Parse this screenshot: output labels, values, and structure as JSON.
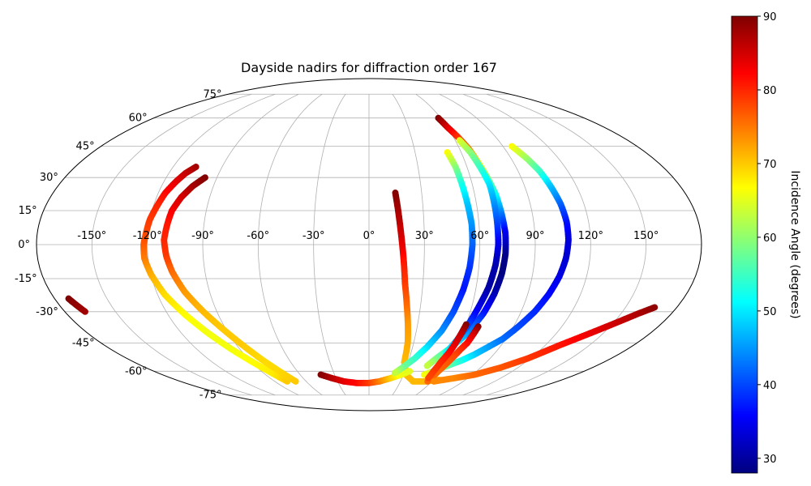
{
  "chart_data": {
    "type": "scatter",
    "projection": "mollweide",
    "title": "Dayside nadirs for diffraction order 167",
    "colorbar": {
      "label": "Incidence Angle (degrees)",
      "min": 28,
      "max": 90,
      "ticks": [
        "30",
        "40",
        "50",
        "60",
        "70",
        "80",
        "90"
      ],
      "tick_values": [
        30,
        40,
        50,
        60,
        70,
        80,
        90
      ],
      "colormap": "jet"
    },
    "lon_ticks": [
      "-150°",
      "-120°",
      "-90°",
      "-60°",
      "-30°",
      "0°",
      "30°",
      "60°",
      "90°",
      "120°",
      "150°"
    ],
    "lon_values": [
      -150,
      -120,
      -90,
      -60,
      -30,
      0,
      30,
      60,
      90,
      120,
      150
    ],
    "lat_ticks": [
      "75°",
      "60°",
      "45°",
      "30°",
      "15°",
      "0°",
      "-15°",
      "-30°",
      "-45°",
      "-60°",
      "-75°"
    ],
    "lat_values": [
      75,
      60,
      45,
      30,
      15,
      0,
      -15,
      -30,
      -45,
      -60,
      -75
    ],
    "grid": true,
    "tracks": [
      {
        "points": [
          [
            -106,
            35,
            88
          ],
          [
            -110,
            32,
            86
          ],
          [
            -113,
            28,
            84
          ],
          [
            -116,
            23,
            82
          ],
          [
            -118,
            17,
            80
          ],
          [
            -120,
            11,
            79
          ],
          [
            -121,
            5,
            78
          ],
          [
            -122,
            0,
            77
          ],
          [
            -122,
            -6,
            75
          ],
          [
            -120,
            -13,
            72
          ],
          [
            -116,
            -22,
            69
          ],
          [
            -110,
            -31,
            67
          ],
          [
            -103,
            -40,
            66
          ],
          [
            -96,
            -48,
            66
          ],
          [
            -88,
            -56,
            67
          ],
          [
            -82,
            -62,
            68
          ],
          [
            -78,
            -66,
            70
          ]
        ]
      },
      {
        "points": [
          [
            -97,
            30,
            90
          ],
          [
            -102,
            26,
            88
          ],
          [
            -106,
            21,
            85
          ],
          [
            -109,
            15,
            83
          ],
          [
            -110,
            9,
            81
          ],
          [
            -111,
            2,
            80
          ],
          [
            -110,
            -5,
            79
          ],
          [
            -108,
            -12,
            76
          ],
          [
            -104,
            -21,
            73
          ],
          [
            -98,
            -30,
            71
          ],
          [
            -92,
            -38,
            70
          ],
          [
            -86,
            -46,
            70
          ],
          [
            -80,
            -54,
            69
          ],
          [
            -75,
            -60,
            69
          ],
          [
            -70,
            -66,
            70
          ]
        ]
      },
      {
        "points": [
          [
            -172,
            -24,
            90
          ],
          [
            -170,
            -27,
            89
          ],
          [
            -168,
            -30,
            88
          ]
        ]
      },
      {
        "points": [
          [
            15,
            23,
            90
          ],
          [
            16,
            16,
            88
          ],
          [
            17,
            8,
            86
          ],
          [
            18,
            0,
            84
          ],
          [
            19,
            -8,
            81
          ],
          [
            20,
            -17,
            79
          ],
          [
            22,
            -27,
            76
          ],
          [
            24,
            -36,
            73
          ],
          [
            26,
            -45,
            72
          ],
          [
            27,
            -55,
            71
          ],
          [
            32,
            -62,
            71
          ],
          [
            42,
            -66,
            71
          ],
          [
            55,
            -66,
            71
          ],
          [
            65,
            -65,
            71
          ]
        ]
      },
      {
        "points": [
          [
            -42,
            -62,
            90
          ],
          [
            -34,
            -64,
            87
          ],
          [
            -24,
            -66,
            84
          ],
          [
            -12,
            -67,
            82
          ],
          [
            0,
            -67,
            79
          ],
          [
            10,
            -66,
            75
          ],
          [
            20,
            -64,
            70
          ],
          [
            28,
            -62,
            66
          ],
          [
            34,
            -60,
            65
          ]
        ]
      },
      {
        "points": [
          [
            51,
            42,
            67
          ],
          [
            53,
            35,
            60
          ],
          [
            54,
            27,
            53
          ],
          [
            55,
            18,
            48
          ],
          [
            56,
            9,
            45
          ],
          [
            56,
            0,
            42
          ],
          [
            55,
            -10,
            39
          ],
          [
            53,
            -20,
            37
          ],
          [
            50,
            -30,
            40
          ],
          [
            46,
            -39,
            44
          ],
          [
            40,
            -47,
            49
          ],
          [
            34,
            -53,
            54
          ],
          [
            27,
            -58,
            58
          ],
          [
            22,
            -61,
            63
          ]
        ]
      },
      {
        "points": [
          [
            58,
            60,
            90
          ],
          [
            60,
            55,
            85
          ],
          [
            63,
            50,
            80
          ],
          [
            66,
            44,
            75
          ],
          [
            68,
            37,
            68
          ],
          [
            70,
            30,
            60
          ],
          [
            72,
            22,
            52
          ],
          [
            73,
            14,
            44
          ],
          [
            74,
            5,
            35
          ],
          [
            74,
            -4,
            29
          ],
          [
            73,
            -13,
            28
          ],
          [
            71,
            -22,
            31
          ],
          [
            68,
            -31,
            37
          ],
          [
            63,
            -40,
            44
          ],
          [
            57,
            -47,
            52
          ],
          [
            50,
            -53,
            58
          ],
          [
            46,
            -57,
            63
          ]
        ]
      },
      {
        "points": [
          [
            63,
            48,
            65
          ],
          [
            66,
            42,
            60
          ],
          [
            68,
            35,
            55
          ],
          [
            70,
            27,
            50
          ],
          [
            70,
            18,
            45
          ],
          [
            70,
            9,
            40
          ],
          [
            70,
            0,
            35
          ],
          [
            69,
            -9,
            31
          ],
          [
            67,
            -19,
            30
          ],
          [
            64,
            -28,
            34
          ],
          [
            61,
            -37,
            40
          ],
          [
            58,
            -44,
            46
          ],
          [
            55,
            -50,
            51
          ]
        ]
      },
      {
        "points": [
          [
            96,
            45,
            67
          ],
          [
            100,
            39,
            61
          ],
          [
            103,
            33,
            55
          ],
          [
            105,
            26,
            48
          ],
          [
            107,
            18,
            42
          ],
          [
            108,
            10,
            37
          ],
          [
            108,
            2,
            34
          ],
          [
            107,
            -6,
            33
          ],
          [
            105,
            -14,
            34
          ],
          [
            102,
            -22,
            36
          ],
          [
            98,
            -30,
            38
          ],
          [
            93,
            -37,
            40
          ],
          [
            88,
            -43,
            42
          ],
          [
            82,
            -47,
            45
          ],
          [
            76,
            -51,
            48
          ],
          [
            70,
            -54,
            52
          ],
          [
            62,
            -57,
            57
          ],
          [
            54,
            -60,
            62
          ],
          [
            48,
            -62,
            66
          ]
        ]
      },
      {
        "points": [
          [
            68,
            -37,
            90
          ],
          [
            67,
            -41,
            85
          ],
          [
            66,
            -45,
            82
          ],
          [
            64,
            -48,
            80
          ],
          [
            62,
            -52,
            78
          ],
          [
            60,
            -56,
            77
          ],
          [
            58,
            -60,
            76
          ],
          [
            57,
            -63,
            76
          ],
          [
            56,
            -66,
            76
          ]
        ]
      },
      {
        "points": [
          [
            60,
            -36,
            90
          ],
          [
            59,
            -41,
            86
          ],
          [
            58,
            -46,
            84
          ],
          [
            57,
            -50,
            82
          ],
          [
            55,
            -55,
            80
          ],
          [
            54,
            -60,
            79
          ],
          [
            54,
            -64,
            78
          ]
        ]
      },
      {
        "points": [
          [
            62,
            -66,
            74
          ],
          [
            78,
            -64,
            74
          ],
          [
            92,
            -62,
            76
          ],
          [
            106,
            -58,
            77
          ],
          [
            118,
            -53,
            79
          ],
          [
            130,
            -46,
            81
          ],
          [
            140,
            -41,
            83
          ],
          [
            150,
            -36,
            85
          ],
          [
            160,
            -31,
            87
          ],
          [
            167,
            -28,
            89
          ]
        ]
      }
    ]
  }
}
